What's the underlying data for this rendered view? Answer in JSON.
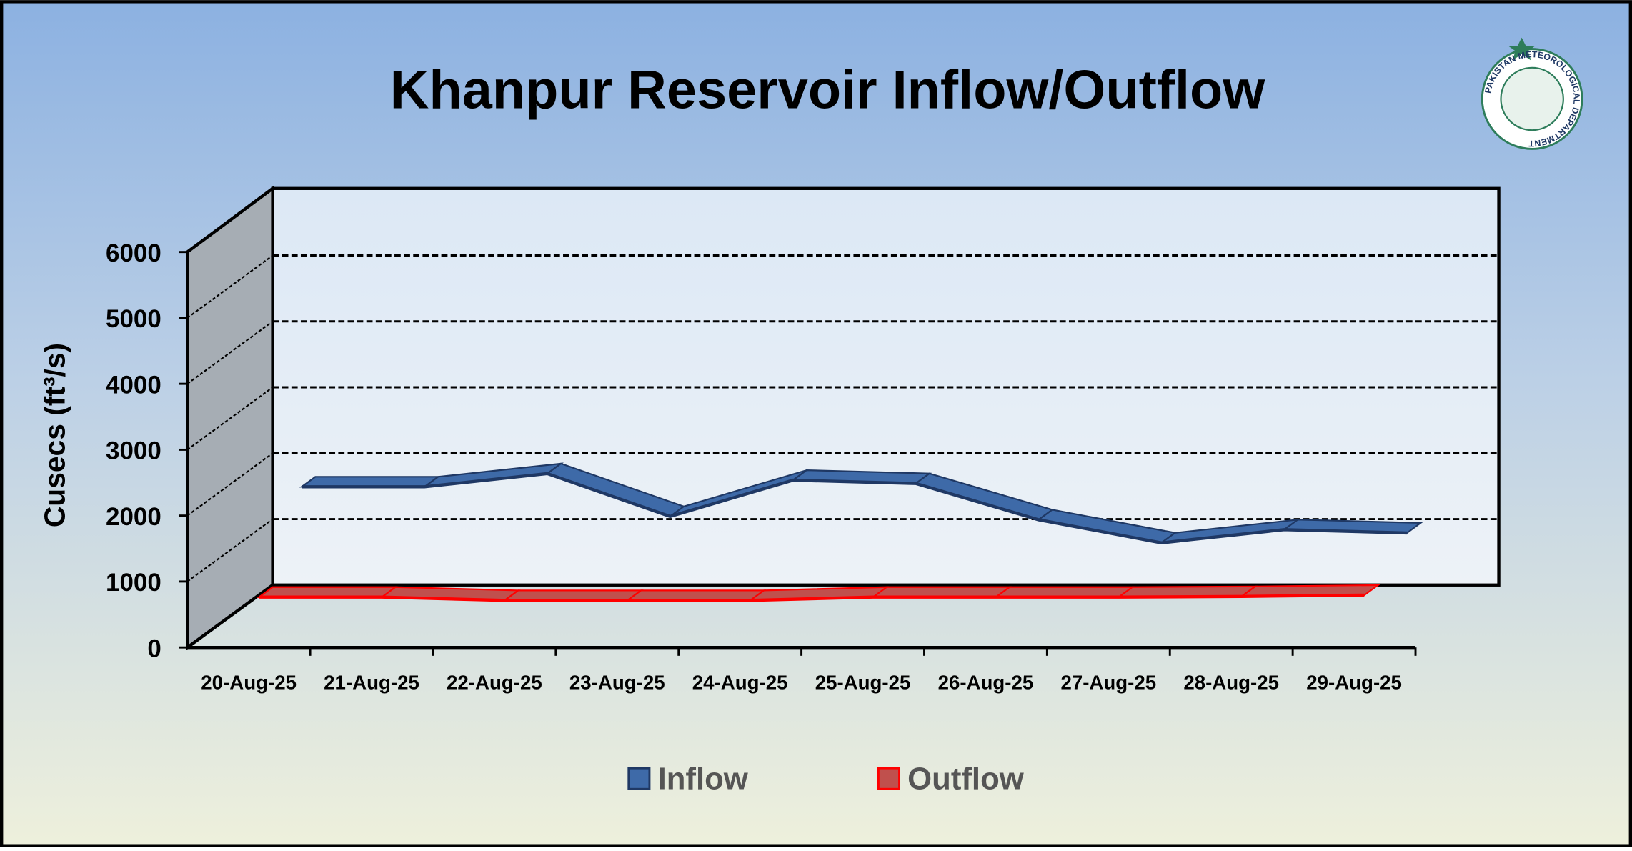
{
  "chart_data": {
    "type": "line3d",
    "title": "Khanpur Reservoir Inflow/Outflow",
    "y_label": "Cusecs (ft³/s)",
    "logo_text": "PAKISTAN METEOROLOGICAL DEPARTMENT",
    "categories": [
      "20-Aug-25",
      "21-Aug-25",
      "22-Aug-25",
      "23-Aug-25",
      "24-Aug-25",
      "25-Aug-25",
      "26-Aug-25",
      "27-Aug-25",
      "28-Aug-25",
      "29-Aug-25"
    ],
    "series": [
      {
        "name": "Inflow",
        "color": "#3e6aa8",
        "values": [
          1850,
          1850,
          2050,
          1400,
          1950,
          1900,
          1350,
          1000,
          1200,
          1150
        ]
      },
      {
        "name": "Outflow",
        "color": "#c0504d",
        "values": [
          650,
          650,
          600,
          600,
          600,
          650,
          650,
          650,
          660,
          680
        ]
      }
    ],
    "ylim": [
      0,
      6000
    ],
    "yticks": [
      0,
      1000,
      2000,
      3000,
      4000,
      5000,
      6000
    ],
    "grid": true
  }
}
